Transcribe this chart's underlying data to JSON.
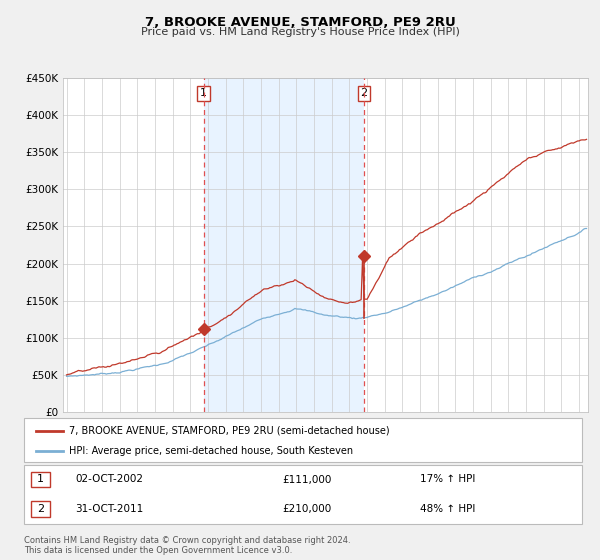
{
  "title": "7, BROOKE AVENUE, STAMFORD, PE9 2RU",
  "subtitle": "Price paid vs. HM Land Registry's House Price Index (HPI)",
  "transaction1_date": "02-OCT-2002",
  "transaction1_price": 111000,
  "transaction1_hpi": "17% ↑ HPI",
  "transaction2_date": "31-OCT-2011",
  "transaction2_price": 210000,
  "transaction2_hpi": "48% ↑ HPI",
  "transaction1_year": 2002.75,
  "transaction2_year": 2011.83,
  "hpi_line_color": "#7bafd4",
  "price_line_color": "#c0392b",
  "dot_color": "#c0392b",
  "vline_color": "#e05050",
  "shade_color": "#ddeeff",
  "background_color": "#f0f0f0",
  "plot_bg_color": "#ffffff",
  "grid_color": "#cccccc",
  "legend_label1": "7, BROOKE AVENUE, STAMFORD, PE9 2RU (semi-detached house)",
  "legend_label2": "HPI: Average price, semi-detached house, South Kesteven",
  "footer1": "Contains HM Land Registry data © Crown copyright and database right 2024.",
  "footer2": "This data is licensed under the Open Government Licence v3.0.",
  "ylim_max": 450000,
  "ylim_min": 0,
  "start_year": 1995,
  "end_year": 2024.5
}
